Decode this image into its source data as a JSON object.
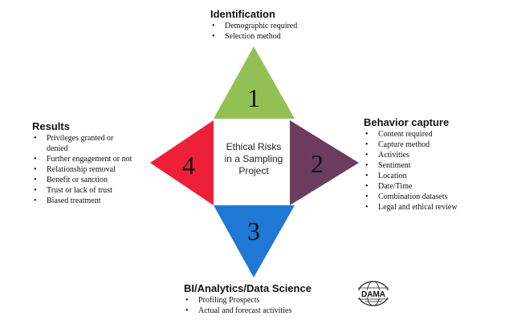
{
  "center": {
    "line1": "Ethical Risks",
    "line2": "in a Sampling",
    "line3": "Project"
  },
  "triangles": {
    "top": {
      "number": "1",
      "color": "#93c054"
    },
    "right": {
      "number": "2",
      "color": "#6c3c5f"
    },
    "bottom": {
      "number": "3",
      "color": "#1f78d3"
    },
    "left": {
      "number": "4",
      "color": "#ee2038"
    }
  },
  "identification": {
    "title": "Identification",
    "items": [
      "Demographic required",
      "Selection method"
    ]
  },
  "behavior": {
    "title": "Behavior capture",
    "items": [
      "Content required",
      "Capture method",
      "Activities",
      "Sentiment",
      "Location",
      "Date/Time",
      "Combination datasets",
      "Legal and ethical review"
    ]
  },
  "bi": {
    "title": "BI/Analytics/Data Science",
    "items": [
      "Profiling Prospects",
      "Actual and forecast activities"
    ]
  },
  "results": {
    "title": "Results",
    "items": [
      "Privileges granted or denied",
      "Further engagement or not",
      "Relationship removal",
      "Benefit or sanction",
      "Trust or lack of trust",
      "Biased treatment"
    ]
  },
  "logo": {
    "text": "DAMA",
    "subtext": "International"
  }
}
